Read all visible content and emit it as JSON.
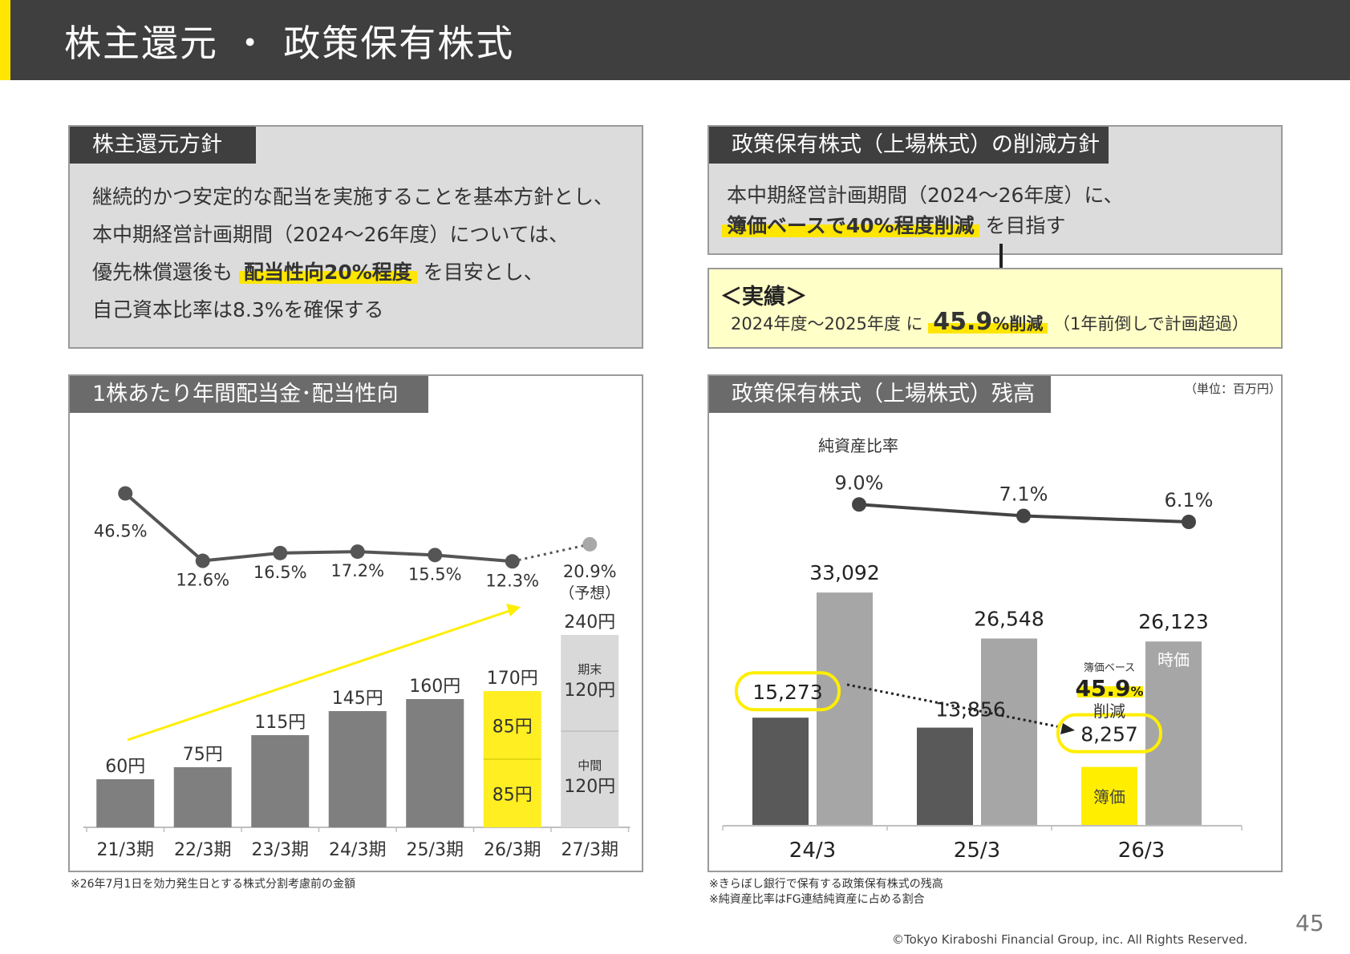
{
  "header": {
    "title": "株主還元 ・ 政策保有株式"
  },
  "policy": {
    "tab": "株主還元方針",
    "line1": "継続的かつ安定的な配当を実施することを基本方針とし、",
    "line2": "本中期経営計画期間（2024～26年度）については、",
    "line3_pre": "優先株償還後も",
    "line3_hl": "配当性向20%程度",
    "line3_post": "を目安とし、",
    "line4": "自己資本比率は8.3%を確保する"
  },
  "reduction": {
    "tab": "政策保有株式（上場株式）の削減方針",
    "line1": "本中期経営計画期間（2024～26年度）に、",
    "line2_hl": "簿価ベースで40%程度削減",
    "line2_post": "を目指す"
  },
  "result": {
    "title": "＜実績＞",
    "pre": "2024年度～2025年度 に",
    "big": "45.9",
    "unit": "%削減",
    "post": "（1年前倒しで計画超過）"
  },
  "dividend": {
    "tab": "1株あたり年間配当金･配当性向",
    "footnote": "※26年7月1日を効力発生日とする株式分割考慮前の金額"
  },
  "holdings": {
    "tab": "政策保有株式（上場株式）残高",
    "unit": "（単位：百万円）",
    "footnote1": "※きらぼし銀行で保有する政策保有株式の残高",
    "footnote2": "※純資産比率はFG連結純資産に占める割合"
  },
  "chart_data": [
    {
      "type": "bar",
      "categories": [
        "21/3期",
        "22/3期",
        "23/3期",
        "24/3期",
        "25/3期",
        "26/3期",
        "27/3期"
      ],
      "series": [
        {
          "values": [
            60,
            75,
            115,
            145,
            160,
            170,
            240
          ],
          "labels": [
            "60円",
            "75円",
            "115円",
            "145円",
            "160円",
            "170円",
            "240円"
          ]
        },
        {
          "values": [
            46.5,
            12.6,
            16.5,
            17.2,
            15.5,
            12.3,
            20.9
          ],
          "labels": [
            "46.5%",
            "12.6%",
            "16.5%",
            "17.2%",
            "15.5%",
            "12.3%",
            "20.9%"
          ]
        }
      ],
      "breakdown": {
        "26/3期": {
          "segments": [
            85,
            85
          ],
          "labels": [
            "85円",
            "85円"
          ]
        },
        "27/3期": {
          "segments": [
            120,
            120
          ],
          "labels": [
            "中間",
            "120円",
            "期末",
            "120円"
          ],
          "forecast": "（予想）"
        }
      },
      "colors": {
        "bar": "#7f7f7f",
        "highlight": "#ffee22",
        "forecast": "#d9d9d9",
        "line": "#555555",
        "arrow": "#ffee00"
      }
    },
    {
      "type": "bar",
      "categories": [
        "24/3",
        "25/3",
        "26/3"
      ],
      "series": [
        {
          "values": [
            15273,
            13856,
            8257
          ],
          "labels": [
            "15,273",
            "13,856",
            "8,257"
          ],
          "tag": "簿価"
        },
        {
          "values": [
            33092,
            26548,
            26123
          ],
          "labels": [
            "33,092",
            "26,548",
            "26,123"
          ],
          "tag": "時価"
        },
        {
          "values": [
            9.0,
            7.1,
            6.1
          ],
          "labels": [
            "9.0%",
            "7.1%",
            "6.1%"
          ]
        }
      ],
      "line_title": "純資産比率",
      "callout": {
        "top": "簿価ベース",
        "value": "45.9",
        "unit": "%",
        "bottom": "削減"
      },
      "colors": {
        "book": "#595959",
        "market": "#a6a6a6",
        "highlight": "#ffee00",
        "line": "#444444"
      }
    }
  ],
  "footer": {
    "copyright": "©Tokyo Kiraboshi Financial Group, inc. All Rights Reserved.",
    "page": "45"
  }
}
